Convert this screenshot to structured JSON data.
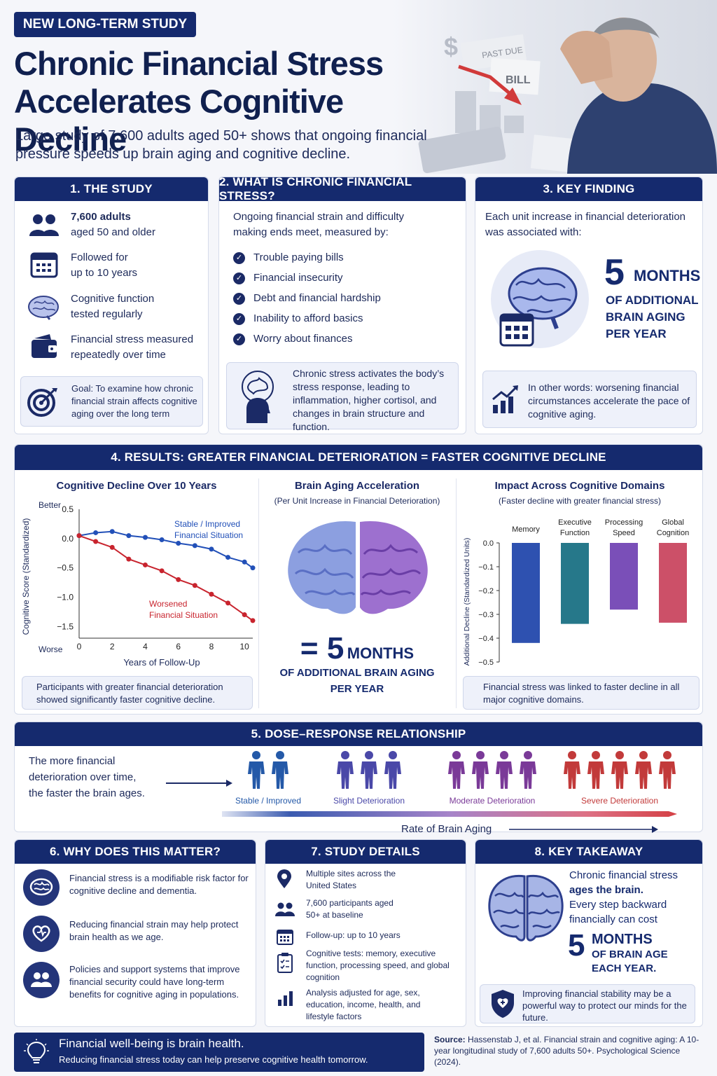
{
  "header": {
    "tag": "NEW LONG-TERM STUDY",
    "title_line1": "Chronic Financial Stress",
    "title_line2": "Accelerates Cognitive Decline",
    "subtitle_line1": "Large study of 7,600 adults aged 50+ shows that ongoing financial",
    "subtitle_line2": "pressure speeds up brain aging and cognitive decline.",
    "photo_words": {
      "dollar": "$",
      "past_due": "PAST DUE",
      "bill": "BILL"
    }
  },
  "study": {
    "heading": "1. THE STUDY",
    "items": [
      {
        "line1": "7,600 adults",
        "line2": "aged 50 and older",
        "icon": "people-icon"
      },
      {
        "line1": "Followed for",
        "line2": "up to 10 years",
        "icon": "calendar-icon"
      },
      {
        "line1": "Cognitive function",
        "line2": "tested regularly",
        "icon": "brain-icon"
      },
      {
        "line1": "Financial stress measured",
        "line2": "repeatedly over time",
        "icon": "wallet-icon"
      }
    ],
    "goal": "Goal: To examine how chronic financial strain affects cognitive aging over the long term"
  },
  "chronic": {
    "heading": "2. WHAT IS CHRONIC FINANCIAL STRESS?",
    "intro_line1": "Ongoing financial strain and difficulty",
    "intro_line2": "making ends meet, measured by:",
    "items": [
      "Trouble paying bills",
      "Financial insecurity",
      "Debt and financial hardship",
      "Inability to afford basics",
      "Worry about finances"
    ],
    "note": "Chronic stress activates the body’s stress response, leading to inflammation, higher cortisol, and changes in brain structure and function."
  },
  "finding": {
    "heading": "3. KEY FINDING",
    "intro_line1": "Each unit increase in financial deterioration",
    "intro_line2": "was associated with:",
    "number": "5",
    "unit": "MONTHS",
    "line1": "OF ADDITIONAL",
    "line2": "BRAIN AGING",
    "line3": "PER YEAR",
    "note": "In other words: worsening financial circumstances accelerate the pace of cognitive aging."
  },
  "results": {
    "heading": "4. RESULTS: GREATER FINANCIAL DETERIORATION = FASTER COGNITIVE DECLINE",
    "line_title": "Cognitive Decline Over 10 Years",
    "line_better": "Better",
    "line_worse": "Worse",
    "line_ylabel": "Cognitive Score (Standardized)",
    "line_xlabel": "Years of Follow-Up",
    "line_series1_l1": "Stable / Improved",
    "line_series1_l2": "Financial Situation",
    "line_series2_l1": "Worsened",
    "line_series2_l2": "Financial Situation",
    "line_note": "Participants with greater financial deterioration showed significantly faster cognitive decline.",
    "brain_title": "Brain Aging Acceleration",
    "brain_sub": "(Per Unit Increase in Financial Deterioration)",
    "brain_eq": "= 5",
    "brain_unit": "MONTHS",
    "brain_line1": "OF ADDITIONAL BRAIN AGING",
    "brain_line2": "PER YEAR",
    "bar_title": "Impact Across Cognitive Domains",
    "bar_sub": "(Faster decline with greater financial stress)",
    "bar_ylabel": "Additional Decline (Standardized Units)",
    "bar_note": "Financial stress was linked to faster decline in all major cognitive domains."
  },
  "chart_data": [
    {
      "type": "line",
      "title": "Cognitive Decline Over 10 Years",
      "xlabel": "Years of Follow-Up",
      "ylabel": "Cognitive Score (Standardized)",
      "xlim": [
        0,
        10.5
      ],
      "ylim": [
        -1.7,
        0.5
      ],
      "xticks": [
        0,
        2,
        4,
        6,
        8,
        10
      ],
      "yticks": [
        0.5,
        0.0,
        -0.5,
        -1.0,
        -1.5
      ],
      "ytick_labels": [
        "0.5",
        "0.0",
        "−0.5",
        "−1.0",
        "−1.5"
      ],
      "x": [
        0,
        1,
        2,
        3,
        4,
        5,
        6,
        7,
        8,
        9,
        10,
        10.5
      ],
      "series": [
        {
          "name": "Stable / Improved Financial Situation",
          "color": "#2250b8",
          "values": [
            0.05,
            0.1,
            0.12,
            0.05,
            0.02,
            -0.02,
            -0.08,
            -0.12,
            -0.18,
            -0.32,
            -0.4,
            -0.5
          ]
        },
        {
          "name": "Worsened Financial Situation",
          "color": "#c8242e",
          "values": [
            0.05,
            -0.05,
            -0.15,
            -0.35,
            -0.45,
            -0.55,
            -0.7,
            -0.8,
            -0.95,
            -1.1,
            -1.3,
            -1.4
          ]
        }
      ]
    },
    {
      "type": "bar",
      "title": "Impact Across Cognitive Domains",
      "ylabel": "Additional Decline (Standardized Units)",
      "ylim": [
        -0.5,
        0.0
      ],
      "yticks": [
        0.0,
        -0.1,
        -0.2,
        -0.3,
        -0.4,
        -0.5
      ],
      "ytick_labels": [
        "0.0",
        "−0.1",
        "−0.2",
        "−0.3",
        "−0.4",
        "−0.5"
      ],
      "categories": [
        "Memory",
        "Executive Function",
        "Processing Speed",
        "Global Cognition"
      ],
      "category_lines": [
        [
          "Memory"
        ],
        [
          "Executive",
          "Function"
        ],
        [
          "Processing",
          "Speed"
        ],
        [
          "Global",
          "Cognition"
        ]
      ],
      "values": [
        -0.42,
        -0.34,
        -0.28,
        -0.335
      ],
      "colors": [
        "#2e51b0",
        "#26788a",
        "#7a4fb8",
        "#cc5068"
      ]
    }
  ],
  "dose": {
    "heading": "5. DOSE–RESPONSE RELATIONSHIP",
    "text_line1": "The more financial",
    "text_line2": "deterioration over time,",
    "text_line3": "the faster the brain ages.",
    "groups": [
      {
        "label": "Stable / Improved",
        "count": 2,
        "color": "#2459a8"
      },
      {
        "label": "Slight Deterioration",
        "count": 3,
        "color": "#4a48a8"
      },
      {
        "label": "Moderate Deterioration",
        "count": 4,
        "color": "#7a3a98"
      },
      {
        "label": "Severe Deterioration",
        "count": 5,
        "color": "#c23a3a"
      }
    ],
    "axis_label": "Rate of Brain Aging"
  },
  "why": {
    "heading": "6. WHY DOES THIS MATTER?",
    "items": [
      {
        "text": "Financial stress is a modifiable risk factor for cognitive decline and dementia.",
        "icon": "brain-icon"
      },
      {
        "text": "Reducing financial strain may help protect brain health as we age.",
        "icon": "heart-hand-icon"
      },
      {
        "text": "Policies and support systems that improve financial security could have long-term benefits for cognitive aging in populations.",
        "icon": "community-icon"
      }
    ]
  },
  "details": {
    "heading": "7. STUDY DETAILS",
    "items": [
      {
        "text": "Multiple sites across the United States",
        "icon": "location-pin-icon"
      },
      {
        "text": "7,600 participants aged 50+ at baseline",
        "icon": "people-icon"
      },
      {
        "text": "Follow-up: up to 10 years",
        "icon": "calendar-icon"
      },
      {
        "text": "Cognitive tests: memory, executive function, processing speed, and global cognition",
        "icon": "clipboard-icon"
      },
      {
        "text": "Analysis adjusted for age, sex, education, income, health, and lifestyle factors",
        "icon": "bar-chart-icon"
      }
    ]
  },
  "takeaway": {
    "heading": "8. KEY TAKEAWAY",
    "line1": "Chronic financial stress",
    "line2": "ages the brain.",
    "line3": "Every step backward",
    "line4": "financially can cost",
    "number": "5",
    "unit": "MONTHS",
    "line5": "OF BRAIN AGE",
    "line6": "EACH YEAR.",
    "note": "Improving financial stability may be a powerful way to protect our minds for the future."
  },
  "footer": {
    "title": "Financial well-being is brain health.",
    "sub": "Reducing financial stress today can help preserve cognitive health tomorrow.",
    "source_label": "Source:",
    "source_text": "Hassenstab J, et al. Financial strain and cognitive aging: A 10-year longitudinal study of 7,600 adults 50+. Psychological Science (2024)."
  },
  "colors": {
    "navy": "#152a6e",
    "blue_line": "#2250b8",
    "red_line": "#c8242e",
    "panel_bg": "#ffffff",
    "box_bg": "#eef1fa"
  }
}
